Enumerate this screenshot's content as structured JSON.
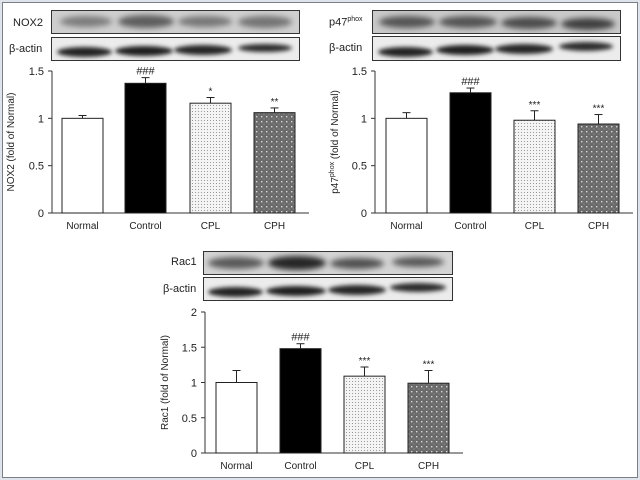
{
  "figure": {
    "panels": [
      {
        "id": "nox2",
        "blot_labels": [
          "NOX2",
          "β-actin"
        ],
        "ylabel": "NOX2 (fold of Normal)"
      },
      {
        "id": "p47phox",
        "blot_labels": [
          "p47phox",
          "β-actin"
        ],
        "ylabel": "p47phox (fold of Normal)"
      },
      {
        "id": "rac1",
        "blot_labels": [
          "Rac1",
          "β-actin"
        ],
        "ylabel": "Rac1 (fold of Normal)"
      }
    ]
  },
  "chart_data": [
    {
      "type": "bar",
      "title": "",
      "xlabel": "",
      "ylabel": "NOX2 (fold of Normal)",
      "categories": [
        "Normal",
        "Control",
        "CPL",
        "CPH"
      ],
      "values": [
        1.0,
        1.37,
        1.16,
        1.06
      ],
      "errors": [
        0.03,
        0.06,
        0.06,
        0.05
      ],
      "annotations": [
        "",
        "###",
        "*",
        "**"
      ],
      "ylim": [
        0,
        1.5
      ],
      "yticks": [
        0,
        0.5,
        1,
        1.5
      ],
      "grid": false,
      "fills": [
        "white",
        "black",
        "light-dotted",
        "dark-dotted"
      ]
    },
    {
      "type": "bar",
      "title": "",
      "xlabel": "",
      "ylabel": "p47phox (fold of Normal)",
      "categories": [
        "Normal",
        "Control",
        "CPL",
        "CPH"
      ],
      "values": [
        1.0,
        1.27,
        0.98,
        0.94
      ],
      "errors": [
        0.06,
        0.05,
        0.1,
        0.1
      ],
      "annotations": [
        "",
        "###",
        "***",
        "***"
      ],
      "ylim": [
        0,
        1.5
      ],
      "yticks": [
        0,
        0.5,
        1,
        1.5
      ],
      "grid": false,
      "fills": [
        "white",
        "black",
        "light-dotted",
        "dark-dotted"
      ]
    },
    {
      "type": "bar",
      "title": "",
      "xlabel": "",
      "ylabel": "Rac1 (fold of Normal)",
      "categories": [
        "Normal",
        "Control",
        "CPL",
        "CPH"
      ],
      "values": [
        1.0,
        1.48,
        1.09,
        0.99
      ],
      "errors": [
        0.17,
        0.07,
        0.13,
        0.18
      ],
      "annotations": [
        "",
        "###",
        "***",
        "***"
      ],
      "ylim": [
        0,
        2
      ],
      "yticks": [
        0,
        0.5,
        1,
        1.5,
        2
      ],
      "grid": false,
      "fills": [
        "white",
        "black",
        "light-dotted",
        "dark-dotted"
      ]
    }
  ]
}
